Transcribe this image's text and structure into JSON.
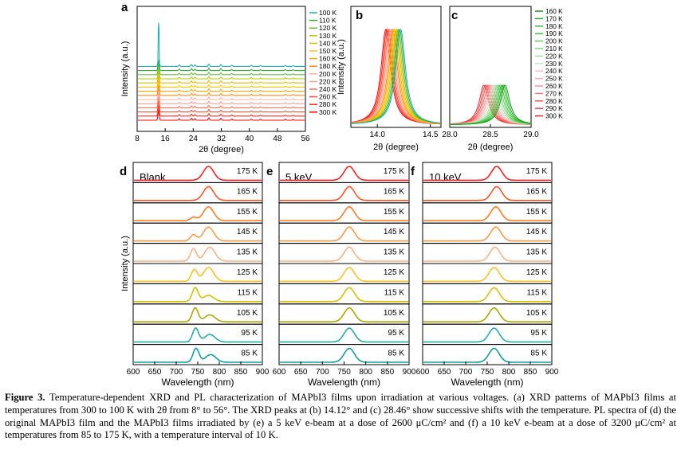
{
  "colors": {
    "temps_300_to_100": [
      "#ff0000",
      "#ff2a1a",
      "#ff4d33",
      "#ff704d",
      "#ff9999",
      "#ffb0a0",
      "#ff8c1a",
      "#ffa500",
      "#ffc000",
      "#e0c000",
      "#b8c800",
      "#60c040",
      "#30b030",
      "#20b0b0"
    ],
    "pl_temps": [
      "#ff2020",
      "#ff5520",
      "#ff7a20",
      "#ff9a40",
      "#ffb080",
      "#ffc020",
      "#d8c000",
      "#b0a800",
      "#20b0a8",
      "#10a0a0"
    ]
  },
  "panels": {
    "a": {
      "label": "a",
      "xlabel": "2θ (degree)",
      "ylabel": "Intensity (a.u.)",
      "xticks": [
        "8",
        "16",
        "24",
        "32",
        "40",
        "48",
        "56"
      ],
      "legend": [
        "100 K",
        "110 K",
        "120 K",
        "130 K",
        "140 K",
        "150 K",
        "160 K",
        "180 K",
        "200 K",
        "220 K",
        "240 K",
        "260 K",
        "280 K",
        "300 K"
      ]
    },
    "b": {
      "label": "b",
      "xlabel": "2θ (degree)",
      "ylabel": "Intensity (a.u.)",
      "xticks": [
        "14.0",
        "14.5"
      ]
    },
    "c": {
      "label": "c",
      "xlabel": "2θ (degree)",
      "xticks": [
        "28.0",
        "28.5",
        "29.0"
      ],
      "legend": [
        "160 K",
        "170 K",
        "180 K",
        "190 K",
        "200 K",
        "210 K",
        "220 K",
        "230 K",
        "240 K",
        "250 K",
        "260 K",
        "270 K",
        "280 K",
        "290 K",
        "300 K"
      ]
    },
    "d": {
      "label": "d",
      "title": "Blank"
    },
    "e": {
      "label": "e",
      "title": "5 keV"
    },
    "f": {
      "label": "f",
      "title": "10 keV"
    },
    "pl_common": {
      "xlabel": "Wavelength (nm)",
      "ylabel": "Intensity (a.u.)",
      "xticks": [
        "600",
        "650",
        "700",
        "750",
        "800",
        "850",
        "900"
      ],
      "temps": [
        "175 K",
        "165 K",
        "155 K",
        "145 K",
        "135 K",
        "125 K",
        "115 K",
        "105 K",
        "95 K",
        "85 K"
      ]
    }
  },
  "chart_data": [
    {
      "type": "line",
      "title": "",
      "xlabel": "2θ (degree)",
      "ylabel": "Intensity (a.u.)",
      "xlim": [
        8,
        56
      ],
      "peaks_deg": [
        14.12,
        20.0,
        23.5,
        24.5,
        28.46,
        31.9,
        35.0,
        40.6,
        43.2,
        50.3,
        52.5
      ],
      "series_names": [
        "100 K",
        "110 K",
        "120 K",
        "130 K",
        "140 K",
        "150 K",
        "160 K",
        "180 K",
        "200 K",
        "220 K",
        "240 K",
        "260 K",
        "280 K",
        "300 K"
      ]
    },
    {
      "type": "line",
      "xlabel": "2θ (degree)",
      "xlim": [
        13.75,
        14.6
      ],
      "peak_positions_deg": {
        "300 K": 14.08,
        "100 K": 14.22
      }
    },
    {
      "type": "line",
      "xlabel": "2θ (degree)",
      "xlim": [
        28.0,
        29.0
      ],
      "peak_positions_deg": {
        "300 K": 28.42,
        "160 K": 28.68
      }
    },
    {
      "type": "line",
      "title": "Blank",
      "xlabel": "Wavelength (nm)",
      "xlim": [
        600,
        900
      ],
      "series": [
        {
          "name": "175 K",
          "peaks": [
            [
              775,
              1.0
            ]
          ]
        },
        {
          "name": "165 K",
          "peaks": [
            [
              775,
              1.0
            ]
          ]
        },
        {
          "name": "155 K",
          "peaks": [
            [
              740,
              0.25
            ],
            [
              775,
              1.0
            ]
          ]
        },
        {
          "name": "145 K",
          "peaks": [
            [
              740,
              0.45
            ],
            [
              775,
              1.0
            ]
          ]
        },
        {
          "name": "135 K",
          "peaks": [
            [
              740,
              0.9
            ],
            [
              778,
              1.0
            ]
          ]
        },
        {
          "name": "125 K",
          "peaks": [
            [
              742,
              0.85
            ],
            [
              775,
              1.0
            ]
          ]
        },
        {
          "name": "115 K",
          "peaks": [
            [
              744,
              1.0
            ],
            [
              775,
              0.45
            ]
          ]
        },
        {
          "name": "105 K",
          "peaks": [
            [
              744,
              1.0
            ],
            [
              778,
              0.5
            ]
          ]
        },
        {
          "name": "95 K",
          "peaks": [
            [
              745,
              1.0
            ],
            [
              778,
              0.55
            ]
          ]
        },
        {
          "name": "85 K",
          "peaks": [
            [
              746,
              1.0
            ],
            [
              780,
              0.55
            ]
          ]
        }
      ]
    },
    {
      "type": "line",
      "title": "5 keV",
      "xlabel": "Wavelength (nm)",
      "xlim": [
        600,
        900
      ],
      "series": [
        {
          "name": "175 K",
          "peaks": [
            [
              762,
              1.0
            ]
          ]
        },
        {
          "name": "165 K",
          "peaks": [
            [
              762,
              1.0
            ]
          ]
        },
        {
          "name": "155 K",
          "peaks": [
            [
              762,
              1.0
            ]
          ]
        },
        {
          "name": "145 K",
          "peaks": [
            [
              762,
              1.0
            ]
          ]
        },
        {
          "name": "135 K",
          "peaks": [
            [
              762,
              1.0
            ]
          ]
        },
        {
          "name": "125 K",
          "peaks": [
            [
              762,
              1.0
            ]
          ]
        },
        {
          "name": "115 K",
          "peaks": [
            [
              762,
              1.0
            ]
          ]
        },
        {
          "name": "105 K",
          "peaks": [
            [
              762,
              1.0
            ]
          ]
        },
        {
          "name": "95 K",
          "peaks": [
            [
              762,
              1.0
            ]
          ]
        },
        {
          "name": "85 K",
          "peaks": [
            [
              762,
              1.0
            ]
          ]
        }
      ]
    },
    {
      "type": "line",
      "title": "10 keV",
      "xlabel": "Wavelength (nm)",
      "xlim": [
        600,
        900
      ],
      "series": [
        {
          "name": "175 K",
          "peaks": [
            [
              772,
              1.0
            ]
          ]
        },
        {
          "name": "165 K",
          "peaks": [
            [
              772,
              1.0
            ]
          ]
        },
        {
          "name": "155 K",
          "peaks": [
            [
              770,
              1.0
            ]
          ]
        },
        {
          "name": "145 K",
          "peaks": [
            [
              770,
              1.0
            ]
          ]
        },
        {
          "name": "135 K",
          "peaks": [
            [
              768,
              1.0
            ]
          ]
        },
        {
          "name": "125 K",
          "peaks": [
            [
              766,
              1.0
            ]
          ]
        },
        {
          "name": "115 K",
          "peaks": [
            [
              766,
              1.0
            ]
          ]
        },
        {
          "name": "105 K",
          "peaks": [
            [
              766,
              1.0
            ]
          ]
        },
        {
          "name": "95 K",
          "peaks": [
            [
              766,
              1.0
            ]
          ]
        },
        {
          "name": "85 K",
          "peaks": [
            [
              766,
              1.0
            ]
          ]
        }
      ]
    }
  ],
  "caption": {
    "figure_label": "Figure 3.",
    "text": " Temperature-dependent XRD and PL characterization of MAPbI3 films upon irradiation at various voltages. (a) XRD patterns of MAPbI3 films at temperatures from 300 to 100 K with 2θ from 8° to 56°. The XRD peaks at (b) 14.12° and (c) 28.46° show successive shifts with the temperature. PL spectra of (d) the original MAPbI3 film and the MAPbI3 films irradiated by (e) a 5 keV e-beam at a dose of 2600 μC/cm² and (f) a 10 keV e-beam at a dose of 3200 μC/cm² at temperatures from 85 to 175 K, with a temperature interval of 10 K."
  }
}
